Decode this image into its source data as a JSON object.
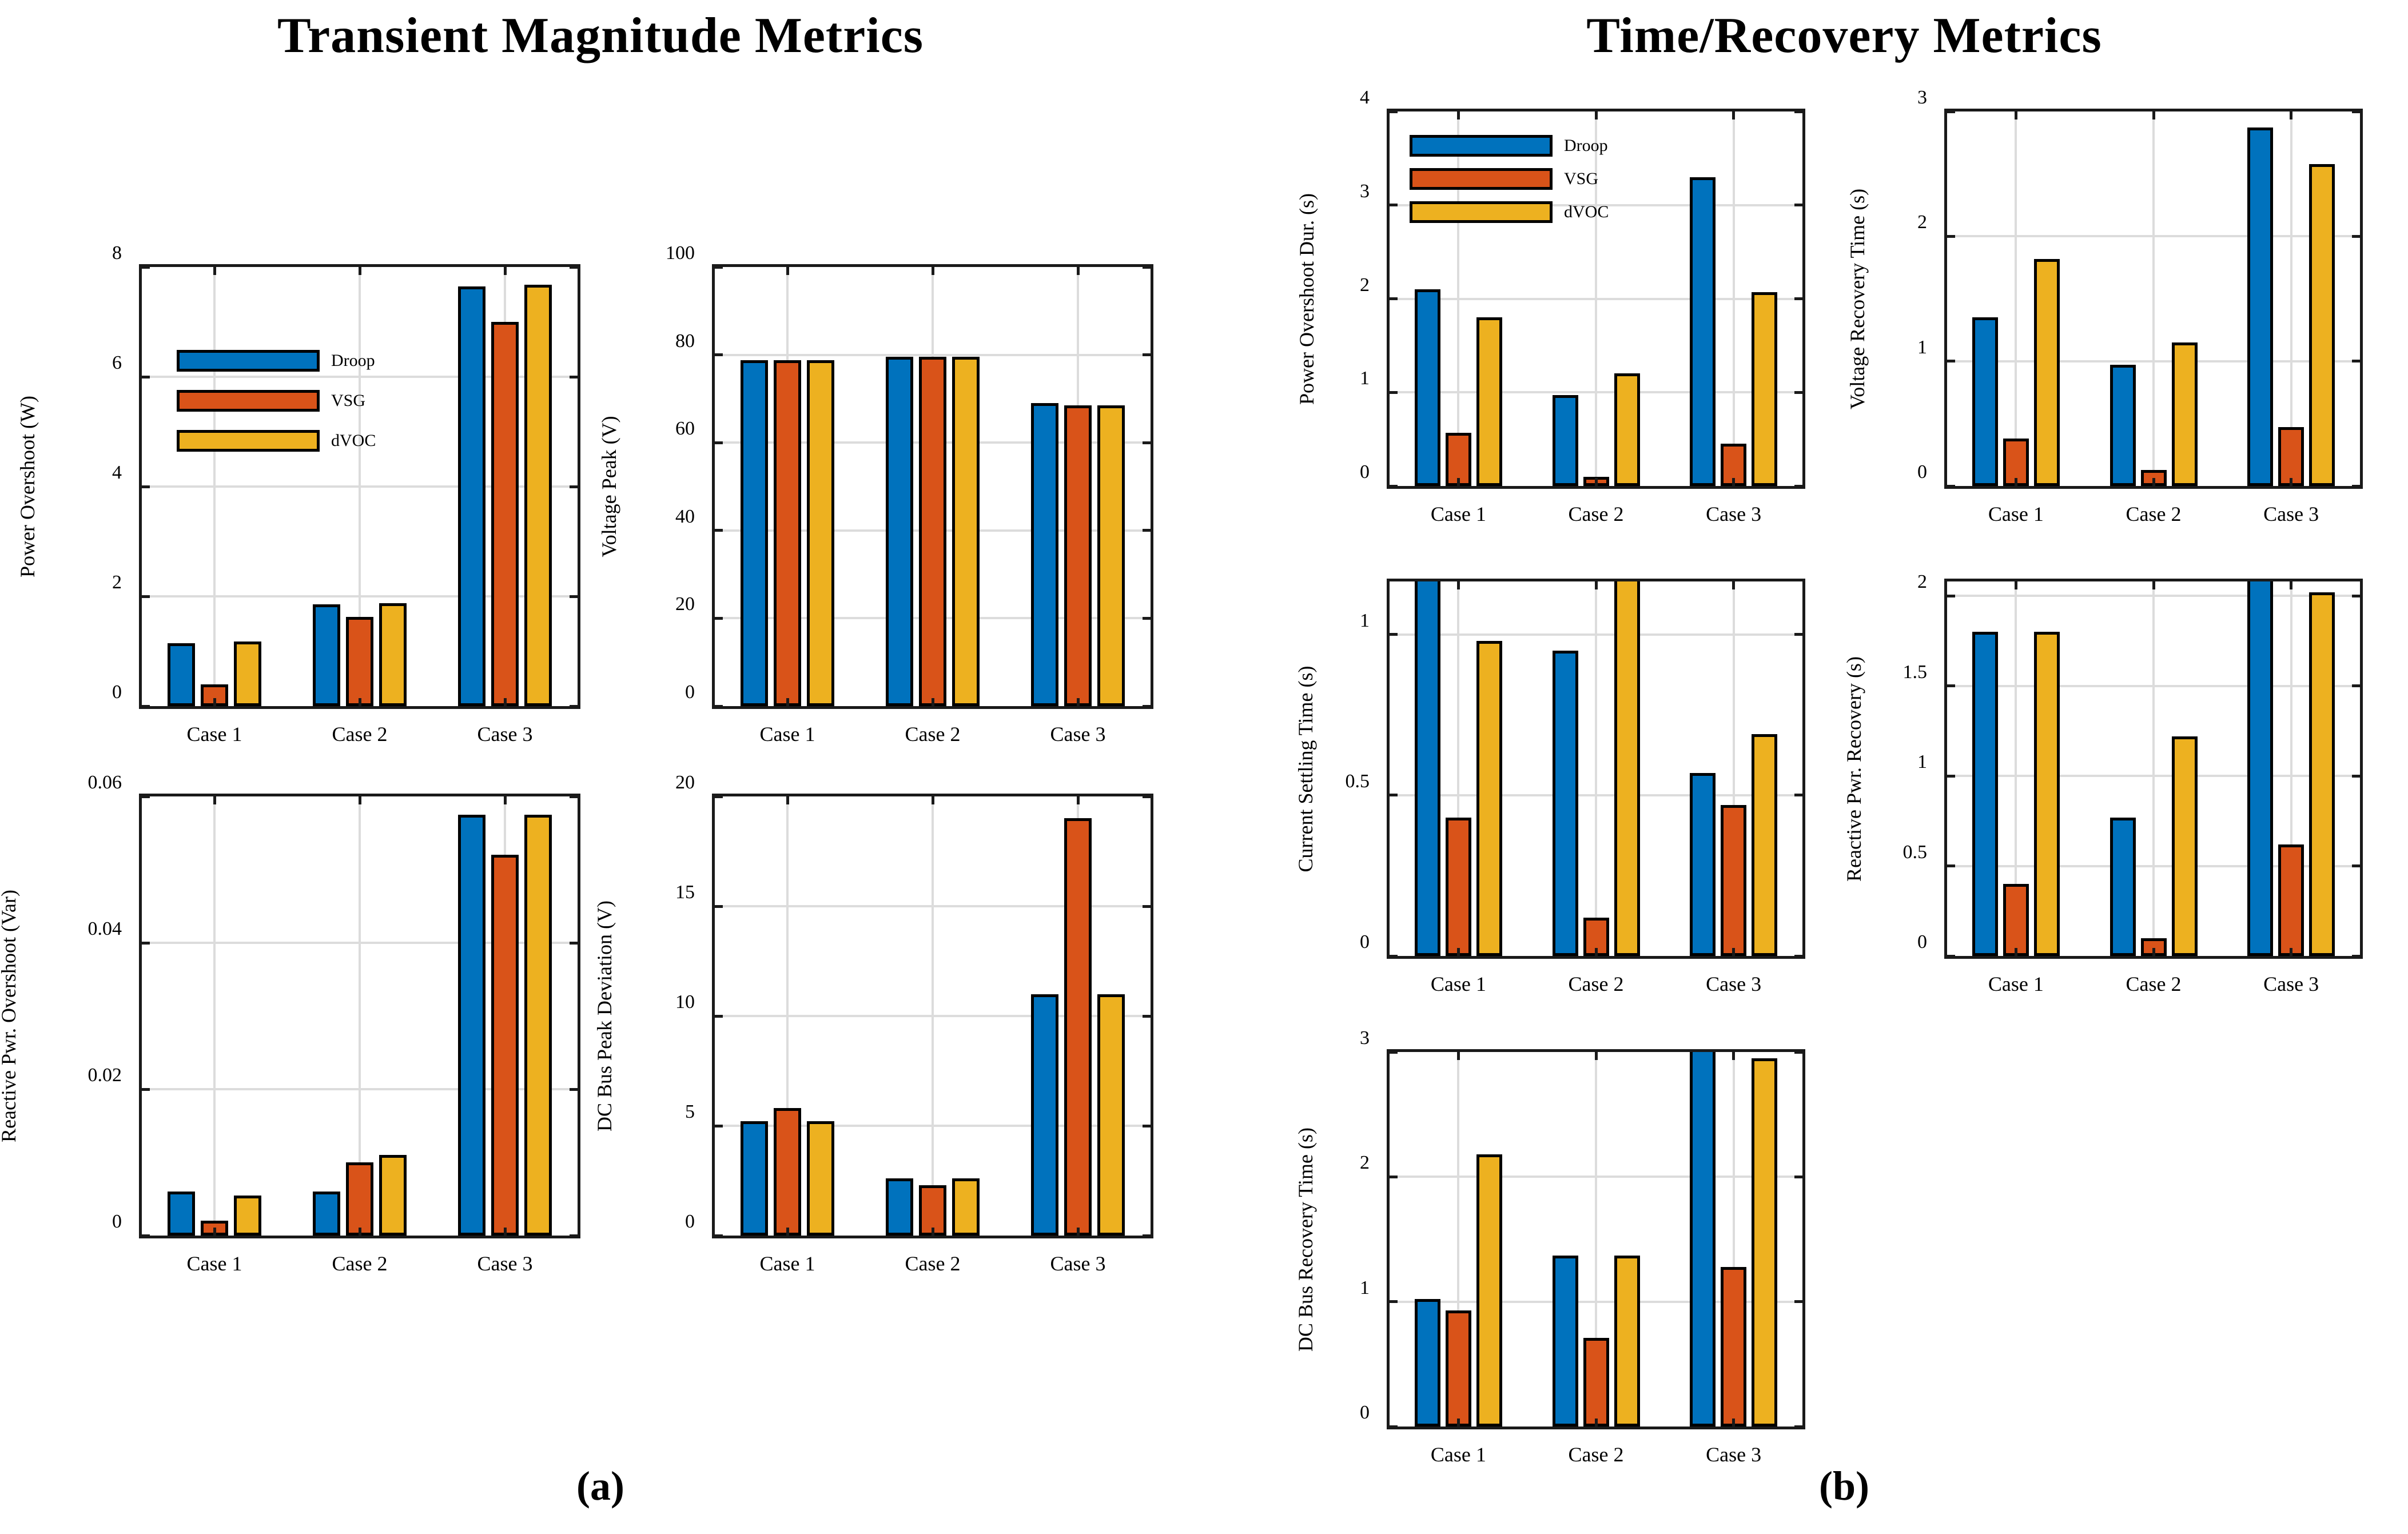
{
  "panels": {
    "a": {
      "title": "Transient Magnitude Metrics",
      "caption": "(a)"
    },
    "b": {
      "title": "Time/Recovery Metrics",
      "caption": "(b)"
    }
  },
  "legend": {
    "position": "upper-left-inside",
    "entries": [
      {
        "label": "Droop",
        "color": "#0072BD"
      },
      {
        "label": "VSG",
        "color": "#D95319"
      },
      {
        "label": "dVOC",
        "color": "#EDB120"
      }
    ]
  },
  "categories": [
    "Case 1",
    "Case 2",
    "Case 3"
  ],
  "chart_data": [
    {
      "id": "a1",
      "panel": "a",
      "type": "bar",
      "ylabel": "Power Overshoot (W)",
      "categories": [
        "Case 1",
        "Case 2",
        "Case 3"
      ],
      "series": [
        {
          "name": "Droop",
          "values": [
            1.15,
            1.85,
            7.65
          ]
        },
        {
          "name": "VSG",
          "values": [
            0.4,
            1.62,
            7.0
          ]
        },
        {
          "name": "dVOC",
          "values": [
            1.18,
            1.88,
            7.68
          ]
        }
      ],
      "ylim": [
        0,
        8
      ],
      "yticks": [
        0,
        2,
        4,
        6,
        8
      ],
      "ytick_labels": [
        "0",
        "2",
        "4",
        "6",
        "8"
      ],
      "grid": true,
      "has_legend": true
    },
    {
      "id": "a2",
      "panel": "a",
      "type": "bar",
      "ylabel": "Voltage Peak (V)",
      "categories": [
        "Case 1",
        "Case 2",
        "Case 3"
      ],
      "series": [
        {
          "name": "Droop",
          "values": [
            78.8,
            79.6,
            69.0
          ]
        },
        {
          "name": "VSG",
          "values": [
            78.8,
            79.6,
            68.5
          ]
        },
        {
          "name": "dVOC",
          "values": [
            78.8,
            79.6,
            68.5
          ]
        }
      ],
      "ylim": [
        0,
        100
      ],
      "yticks": [
        0,
        20,
        40,
        60,
        80,
        100
      ],
      "ytick_labels": [
        "0",
        "20",
        "40",
        "60",
        "80",
        "100"
      ],
      "grid": true,
      "has_legend": false
    },
    {
      "id": "a3",
      "panel": "a",
      "type": "bar",
      "ylabel": "Reactive Pwr. Overshoot (Var)",
      "categories": [
        "Case 1",
        "Case 2",
        "Case 3"
      ],
      "series": [
        {
          "name": "Droop",
          "values": [
            0.006,
            0.006,
            0.0575
          ]
        },
        {
          "name": "VSG",
          "values": [
            0.002,
            0.01,
            0.052
          ]
        },
        {
          "name": "dVOC",
          "values": [
            0.0055,
            0.011,
            0.0575
          ]
        }
      ],
      "ylim": [
        0,
        0.06
      ],
      "yticks": [
        0,
        0.02,
        0.04,
        0.06
      ],
      "ytick_labels": [
        "0",
        "0.02",
        "0.04",
        "0.06"
      ],
      "grid": true,
      "has_legend": false
    },
    {
      "id": "a4",
      "panel": "a",
      "type": "bar",
      "ylabel": "DC Bus Peak Deviation (V)",
      "categories": [
        "Case 1",
        "Case 2",
        "Case 3"
      ],
      "series": [
        {
          "name": "Droop",
          "values": [
            5.2,
            2.6,
            11.0
          ]
        },
        {
          "name": "VSG",
          "values": [
            5.8,
            2.3,
            19.0
          ]
        },
        {
          "name": "dVOC",
          "values": [
            5.2,
            2.6,
            11.0
          ]
        }
      ],
      "ylim": [
        0,
        20
      ],
      "yticks": [
        0,
        5,
        10,
        15,
        20
      ],
      "ytick_labels": [
        "0",
        "5",
        "10",
        "15",
        "20"
      ],
      "grid": true,
      "has_legend": false
    },
    {
      "id": "b1",
      "panel": "b",
      "type": "bar",
      "ylabel": "Power Overshoot Dur. (s)",
      "categories": [
        "Case 1",
        "Case 2",
        "Case 3"
      ],
      "series": [
        {
          "name": "Droop",
          "values": [
            2.1,
            0.97,
            3.3
          ]
        },
        {
          "name": "VSG",
          "values": [
            0.57,
            0.1,
            0.45
          ]
        },
        {
          "name": "dVOC",
          "values": [
            1.8,
            1.2,
            2.07
          ]
        }
      ],
      "ylim": [
        0,
        4
      ],
      "yticks": [
        0,
        1,
        2,
        3,
        4
      ],
      "ytick_labels": [
        "0",
        "1",
        "2",
        "3",
        "4"
      ],
      "grid": true,
      "has_legend": true
    },
    {
      "id": "b2",
      "panel": "b",
      "type": "bar",
      "ylabel": "Voltage Recovery Time (s)",
      "categories": [
        "Case 1",
        "Case 2",
        "Case 3"
      ],
      "series": [
        {
          "name": "Droop",
          "values": [
            1.35,
            0.97,
            2.87
          ]
        },
        {
          "name": "VSG",
          "values": [
            0.38,
            0.13,
            0.47
          ]
        },
        {
          "name": "dVOC",
          "values": [
            1.82,
            1.15,
            2.58
          ]
        }
      ],
      "ylim": [
        0,
        3
      ],
      "yticks": [
        0,
        1,
        2,
        3
      ],
      "ytick_labels": [
        "0",
        "1",
        "2",
        "3"
      ],
      "grid": true,
      "has_legend": false
    },
    {
      "id": "b3",
      "panel": "b",
      "type": "bar",
      "ylabel": "Current Settling Time (s)",
      "categories": [
        "Case 1",
        "Case 2",
        "Case 3"
      ],
      "series": [
        {
          "name": "Droop",
          "values": [
            1.2,
            0.95,
            0.57
          ]
        },
        {
          "name": "VSG",
          "values": [
            0.43,
            0.12,
            0.47
          ]
        },
        {
          "name": "dVOC",
          "values": [
            0.98,
            1.2,
            0.69
          ]
        }
      ],
      "ylim": [
        0,
        1.165
      ],
      "yticks": [
        0,
        0.5,
        1
      ],
      "ytick_labels": [
        "0",
        "0.5",
        "1"
      ],
      "grid": true,
      "has_legend": false
    },
    {
      "id": "b4",
      "panel": "b",
      "type": "bar",
      "ylabel": "Reactive Pwr. Recovery (s)",
      "categories": [
        "Case 1",
        "Case 2",
        "Case 3"
      ],
      "series": [
        {
          "name": "Droop",
          "values": [
            1.8,
            0.77,
            2.13
          ]
        },
        {
          "name": "VSG",
          "values": [
            0.4,
            0.1,
            0.62
          ]
        },
        {
          "name": "dVOC",
          "values": [
            1.8,
            1.22,
            2.02
          ]
        }
      ],
      "ylim": [
        0,
        2.08
      ],
      "yticks": [
        0,
        0.5,
        1,
        1.5,
        2
      ],
      "ytick_labels": [
        "0",
        "0.5",
        "1",
        "1.5",
        "2"
      ],
      "grid": true,
      "has_legend": false
    },
    {
      "id": "b5",
      "panel": "b",
      "type": "bar",
      "ylabel": "DC Bus Recovery Time (s)",
      "categories": [
        "Case 1",
        "Case 2",
        "Case 3"
      ],
      "series": [
        {
          "name": "Droop",
          "values": [
            1.02,
            1.37,
            3.05
          ]
        },
        {
          "name": "VSG",
          "values": [
            0.93,
            0.71,
            1.28
          ]
        },
        {
          "name": "dVOC",
          "values": [
            2.18,
            1.37,
            2.95
          ]
        }
      ],
      "ylim": [
        0,
        3
      ],
      "yticks": [
        0,
        1,
        2,
        3
      ],
      "ytick_labels": [
        "0",
        "1",
        "2",
        "3"
      ],
      "grid": true,
      "has_legend": false
    }
  ]
}
